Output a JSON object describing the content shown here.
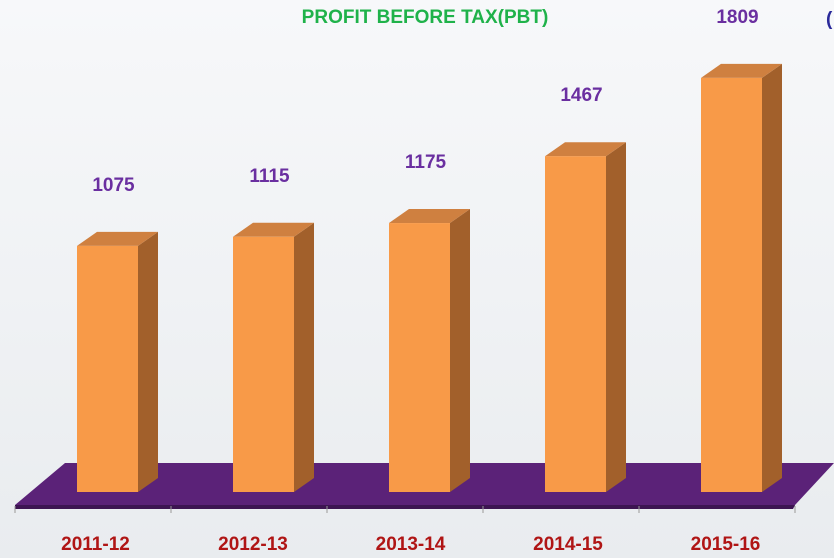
{
  "chart_data": {
    "type": "bar3d",
    "title": "PROFIT BEFORE TAX(PBT)",
    "subtitle": "(",
    "categories": [
      "2011-12",
      "2012-13",
      "2013-14",
      "2014-15",
      "2015-16"
    ],
    "values": [
      1075,
      1115,
      1175,
      1467,
      1809
    ],
    "color": "#f89a48",
    "floor_color": "#5b2278"
  }
}
